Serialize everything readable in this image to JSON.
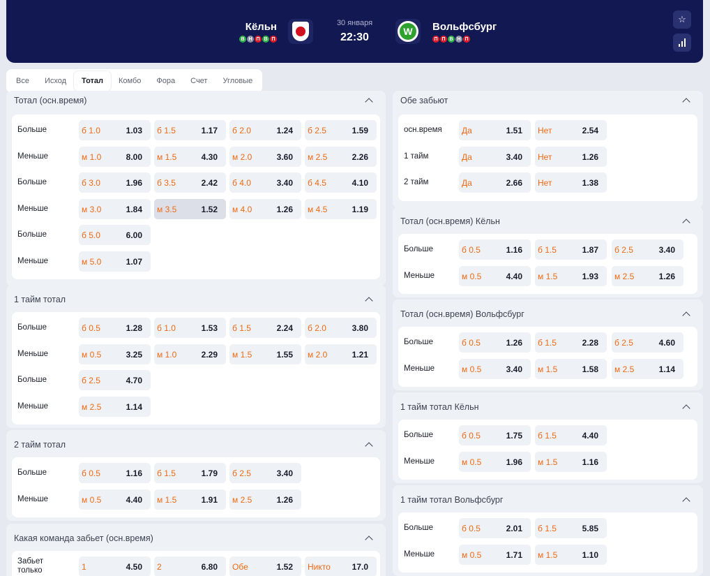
{
  "header": {
    "home": {
      "name": "Кёльн",
      "form": [
        "В",
        "Н",
        "П",
        "В",
        "П"
      ]
    },
    "away": {
      "name": "Вольфсбург",
      "form": [
        "П",
        "П",
        "В",
        "Н",
        "П"
      ]
    },
    "date": "30 января",
    "time": "22:30",
    "away_logo_letter": "W"
  },
  "tabs": [
    "Все",
    "Исход",
    "Тотал",
    "Комбо",
    "Фора",
    "Счет",
    "Угловые"
  ],
  "active_tab": "Тотал",
  "colors": {
    "header_bg": "#121851",
    "key_accent": "#f06a13",
    "win": "#2fb14a",
    "draw": "#8a8fa8",
    "loss": "#e01b2a"
  },
  "icons": {
    "favorite": "star-icon",
    "stats": "stats-bars-icon",
    "collapse": "chevron-up-icon"
  },
  "left_sections": [
    {
      "title": "Тотал (осн.время)",
      "rows": [
        {
          "label": "Больше",
          "cells": [
            {
              "k": "б 1.0",
              "o": "1.03"
            },
            {
              "k": "б 1.5",
              "o": "1.17"
            },
            {
              "k": "б 2.0",
              "o": "1.24"
            },
            {
              "k": "б 2.5",
              "o": "1.59"
            }
          ]
        },
        {
          "label": "Меньше",
          "cells": [
            {
              "k": "м 1.0",
              "o": "8.00"
            },
            {
              "k": "м 1.5",
              "o": "4.30"
            },
            {
              "k": "м 2.0",
              "o": "3.60"
            },
            {
              "k": "м 2.5",
              "o": "2.26"
            }
          ]
        },
        {
          "label": "Больше",
          "cells": [
            {
              "k": "б 3.0",
              "o": "1.96"
            },
            {
              "k": "б 3.5",
              "o": "2.42"
            },
            {
              "k": "б 4.0",
              "o": "3.40"
            },
            {
              "k": "б 4.5",
              "o": "4.10"
            }
          ]
        },
        {
          "label": "Меньше",
          "cells": [
            {
              "k": "м 3.0",
              "o": "1.84"
            },
            {
              "k": "м 3.5",
              "o": "1.52",
              "hl": true
            },
            {
              "k": "м 4.0",
              "o": "1.26"
            },
            {
              "k": "м 4.5",
              "o": "1.19"
            }
          ]
        },
        {
          "label": "Больше",
          "cells": [
            {
              "k": "б 5.0",
              "o": "6.00"
            }
          ]
        },
        {
          "label": "Меньше",
          "cells": [
            {
              "k": "м 5.0",
              "o": "1.07"
            }
          ]
        }
      ]
    },
    {
      "title": "1 тайм тотал",
      "rows": [
        {
          "label": "Больше",
          "cells": [
            {
              "k": "б 0.5",
              "o": "1.28"
            },
            {
              "k": "б 1.0",
              "o": "1.53"
            },
            {
              "k": "б 1.5",
              "o": "2.24"
            },
            {
              "k": "б 2.0",
              "o": "3.80"
            }
          ]
        },
        {
          "label": "Меньше",
          "cells": [
            {
              "k": "м 0.5",
              "o": "3.25"
            },
            {
              "k": "м 1.0",
              "o": "2.29"
            },
            {
              "k": "м 1.5",
              "o": "1.55"
            },
            {
              "k": "м 2.0",
              "o": "1.21"
            }
          ]
        },
        {
          "label": "Больше",
          "cells": [
            {
              "k": "б 2.5",
              "o": "4.70"
            }
          ]
        },
        {
          "label": "Меньше",
          "cells": [
            {
              "k": "м 2.5",
              "o": "1.14"
            }
          ]
        }
      ]
    },
    {
      "title": "2 тайм тотал",
      "rows": [
        {
          "label": "Больше",
          "cells": [
            {
              "k": "б 0.5",
              "o": "1.16"
            },
            {
              "k": "б 1.5",
              "o": "1.79"
            },
            {
              "k": "б 2.5",
              "o": "3.40"
            }
          ]
        },
        {
          "label": "Меньше",
          "cells": [
            {
              "k": "м 0.5",
              "o": "4.40"
            },
            {
              "k": "м 1.5",
              "o": "1.91"
            },
            {
              "k": "м 2.5",
              "o": "1.26"
            }
          ]
        }
      ]
    },
    {
      "title": "Какая команда забьет (осн.время)",
      "rows": [
        {
          "label": "Забьет только",
          "cells": [
            {
              "k": "1",
              "o": "4.50"
            },
            {
              "k": "2",
              "o": "6.80"
            },
            {
              "k": "Обе",
              "o": "1.52"
            },
            {
              "k": "Никто",
              "o": "17.0"
            }
          ]
        }
      ]
    }
  ],
  "right_sections": [
    {
      "title": "Обе забьют",
      "rows": [
        {
          "label": "осн.время",
          "cells": [
            {
              "k": "Да",
              "o": "1.51"
            },
            {
              "k": "Нет",
              "o": "2.54"
            }
          ]
        },
        {
          "label": "1 тайм",
          "cells": [
            {
              "k": "Да",
              "o": "3.40"
            },
            {
              "k": "Нет",
              "o": "1.26"
            }
          ]
        },
        {
          "label": "2 тайм",
          "cells": [
            {
              "k": "Да",
              "o": "2.66"
            },
            {
              "k": "Нет",
              "o": "1.38"
            }
          ]
        }
      ]
    },
    {
      "title": "Тотал (осн.время) Кёльн",
      "rows": [
        {
          "label": "Больше",
          "cells": [
            {
              "k": "б 0.5",
              "o": "1.16"
            },
            {
              "k": "б 1.5",
              "o": "1.87"
            },
            {
              "k": "б 2.5",
              "o": "3.40"
            }
          ]
        },
        {
          "label": "Меньше",
          "cells": [
            {
              "k": "м 0.5",
              "o": "4.40"
            },
            {
              "k": "м 1.5",
              "o": "1.93"
            },
            {
              "k": "м 2.5",
              "o": "1.26"
            }
          ]
        }
      ]
    },
    {
      "title": "Тотал (осн.время) Вольфсбург",
      "rows": [
        {
          "label": "Больше",
          "cells": [
            {
              "k": "б 0.5",
              "o": "1.26"
            },
            {
              "k": "б 1.5",
              "o": "2.28"
            },
            {
              "k": "б 2.5",
              "o": "4.60"
            }
          ]
        },
        {
          "label": "Меньше",
          "cells": [
            {
              "k": "м 0.5",
              "o": "3.40"
            },
            {
              "k": "м 1.5",
              "o": "1.58"
            },
            {
              "k": "м 2.5",
              "o": "1.14"
            }
          ]
        }
      ]
    },
    {
      "title": "1 тайм тотал Кёльн",
      "rows": [
        {
          "label": "Больше",
          "cells": [
            {
              "k": "б 0.5",
              "o": "1.75"
            },
            {
              "k": "б 1.5",
              "o": "4.40"
            }
          ]
        },
        {
          "label": "Меньше",
          "cells": [
            {
              "k": "м 0.5",
              "o": "1.96"
            },
            {
              "k": "м 1.5",
              "o": "1.16"
            }
          ]
        }
      ]
    },
    {
      "title": "1 тайм тотал Вольфсбург",
      "rows": [
        {
          "label": "Больше",
          "cells": [
            {
              "k": "б 0.5",
              "o": "2.01"
            },
            {
              "k": "б 1.5",
              "o": "5.85"
            }
          ]
        },
        {
          "label": "Меньше",
          "cells": [
            {
              "k": "м 0.5",
              "o": "1.71"
            },
            {
              "k": "м 1.5",
              "o": "1.10"
            }
          ]
        }
      ]
    }
  ]
}
